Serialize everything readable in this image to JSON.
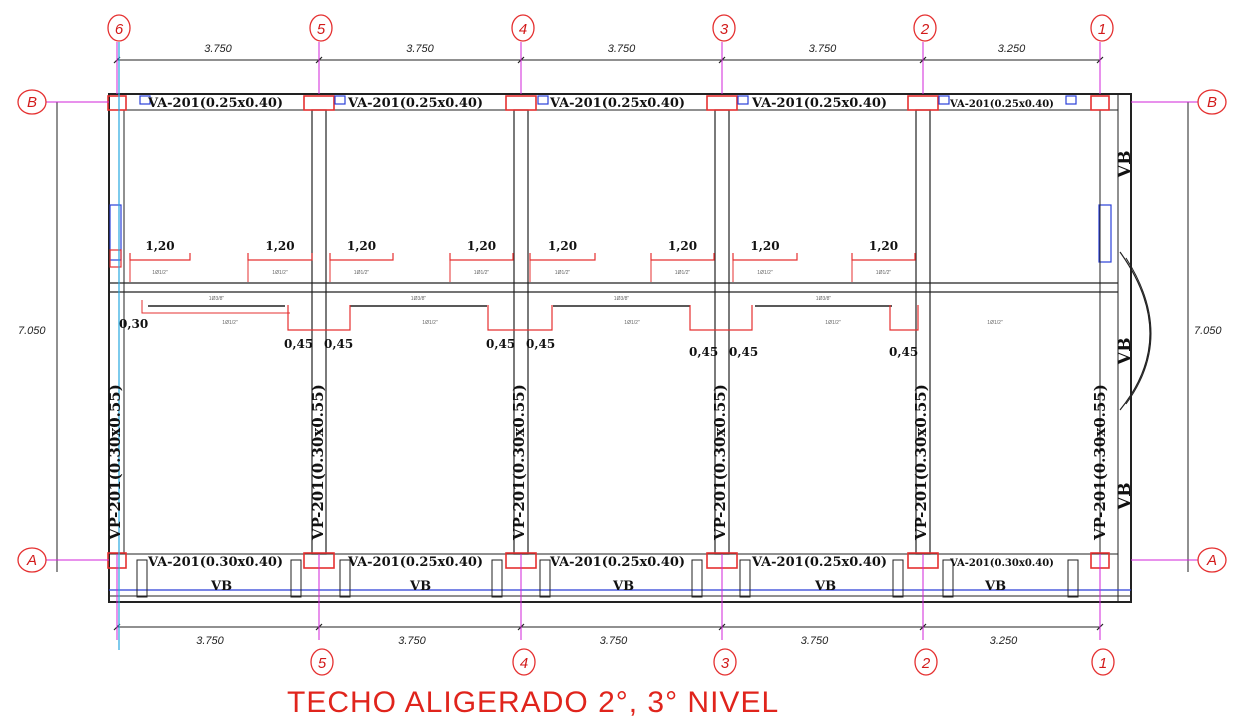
{
  "axes_numeric": [
    "6",
    "5",
    "4",
    "3",
    "2",
    "1"
  ],
  "axes_numeric_bottom": [
    "5",
    "4",
    "3",
    "2",
    "1"
  ],
  "axes_letters": {
    "top": "B",
    "bottom": "A"
  },
  "spans_top": [
    "3.750",
    "3.750",
    "3.750",
    "3.750",
    "3.250"
  ],
  "spans_bottom": [
    "3.750",
    "3.750",
    "3.750",
    "3.750",
    "3.250"
  ],
  "height_dim": "7.050",
  "beams_top": [
    "VA-201(0.25x0.40)",
    "VA-201(0.25x0.40)",
    "VA-201(0.25x0.40)",
    "VA-201(0.25x0.40)",
    "VA-201(0.25x0.40)"
  ],
  "beams_bottom": [
    "VA-201(0.30x0.40)",
    "VA-201(0.25x0.40)",
    "VA-201(0.25x0.40)",
    "VA-201(0.25x0.40)",
    "VA-201(0.30x0.40)"
  ],
  "beam_vertical": "VP-201(0.30x0.55)",
  "vb_label": "VB",
  "rebar_lengths": [
    "1,20",
    "1,20",
    "1,20",
    "1,20",
    "1,20",
    "1,20",
    "1,20",
    "1,20"
  ],
  "lower_dims": {
    "left": "0,30",
    "pair_left": "0,45",
    "pair_right": "0,45"
  },
  "rebar_small": "1Ø1/2\"",
  "rebar_small_alt": "1Ø3/8\"",
  "title": "TECHO ALIGERADO 2°, 3° NIVEL"
}
